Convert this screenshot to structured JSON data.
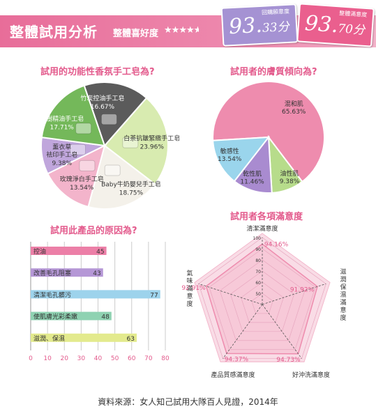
{
  "header": {
    "title": "整體試用分析",
    "subtitle": "整體喜好度",
    "rating_stars": 4.5,
    "badges": [
      {
        "label": "回購願意度",
        "main": "93.",
        "decimal": "33分",
        "color": "#a592d3"
      },
      {
        "label": "整體滿意度",
        "main": "93.",
        "decimal": "70分",
        "color": "#ea5f8e"
      }
    ]
  },
  "icons": {
    "star": "star-icon",
    "half_star": "half-star-icon",
    "soap": "soap-bar-icon"
  },
  "chart_data": [
    {
      "type": "pie",
      "title": "試用的功能性香氛手工皂為?",
      "slices": [
        {
          "label": "白茶抗皺緊緻手工皂",
          "value": 23.96,
          "value_label": "23.96%",
          "color": "#d8ebb0"
        },
        {
          "label": "Baby牛奶嬰兒手工皂",
          "value": 18.75,
          "value_label": "18.75%",
          "color": "#f4f1ea"
        },
        {
          "label": "玫瑰淨白手工皂",
          "value": 13.54,
          "value_label": "13.54%",
          "color": "#f3b4cb"
        },
        {
          "label": "薰衣草\n祛印手工皂",
          "value": 9.38,
          "value_label": "9.38%",
          "color": "#c0a6dc"
        },
        {
          "label": "茶樹精油手工皂",
          "value": 17.71,
          "value_label": "17.71%",
          "color": "#74b85a"
        },
        {
          "label": "竹炭控油手工皂",
          "value": 16.67,
          "value_label": "16.67%",
          "color": "#5b5b5b"
        }
      ]
    },
    {
      "type": "pie",
      "title": "試用者的膚質傾向為?",
      "slices": [
        {
          "label": "混和肌",
          "value": 65.63,
          "value_label": "65.63%",
          "color": "#ee8cae"
        },
        {
          "label": "油性肌",
          "value": 9.38,
          "value_label": "9.38%",
          "color": "#b7dc8b"
        },
        {
          "label": "乾性肌",
          "value": 11.46,
          "value_label": "11.46%",
          "color": "#a98bd0"
        },
        {
          "label": "敏感性",
          "value": 13.54,
          "value_label": "13.54%",
          "color": "#9ad5ec"
        }
      ]
    },
    {
      "type": "bar",
      "orientation": "horizontal",
      "title": "試用此產品的原因為?",
      "categories": [
        "控油",
        "改善毛孔阻塞",
        "清潔毛孔髒污",
        "使肌膚光彩柔嫩",
        "滋潤、保濕"
      ],
      "values": [
        45,
        43,
        77,
        48,
        63
      ],
      "colors": [
        "#ec7fa7",
        "#b597d6",
        "#9dd3ec",
        "#8fd2b2",
        "#e3ea8d"
      ],
      "xlim": [
        0,
        80
      ],
      "xticks": [
        0,
        10,
        20,
        30,
        40,
        50,
        60,
        70,
        80
      ],
      "grid": true
    },
    {
      "type": "radar",
      "title": "試用者各項滿意度",
      "axes": [
        {
          "label": "清潔滿意度",
          "value": 94.16,
          "value_label": "94.16%"
        },
        {
          "label": "滋潤保濕滿意度",
          "value": 91.92,
          "value_label": "91.92%"
        },
        {
          "label": "好沖洗滿意度",
          "value": 94.73,
          "value_label": "94.73%"
        },
        {
          "label": "產品質感滿意度",
          "value": 94.37,
          "value_label": "94.37%"
        },
        {
          "label": "氣味滿意度",
          "value": 92.91,
          "value_label": "92.91%"
        }
      ],
      "rlim": [
        40,
        100
      ],
      "ticks": [
        50,
        60,
        70,
        80,
        90,
        100
      ]
    }
  ],
  "footer": {
    "source": "資料來源：女人知己試用大隊百人見證，2014年"
  }
}
